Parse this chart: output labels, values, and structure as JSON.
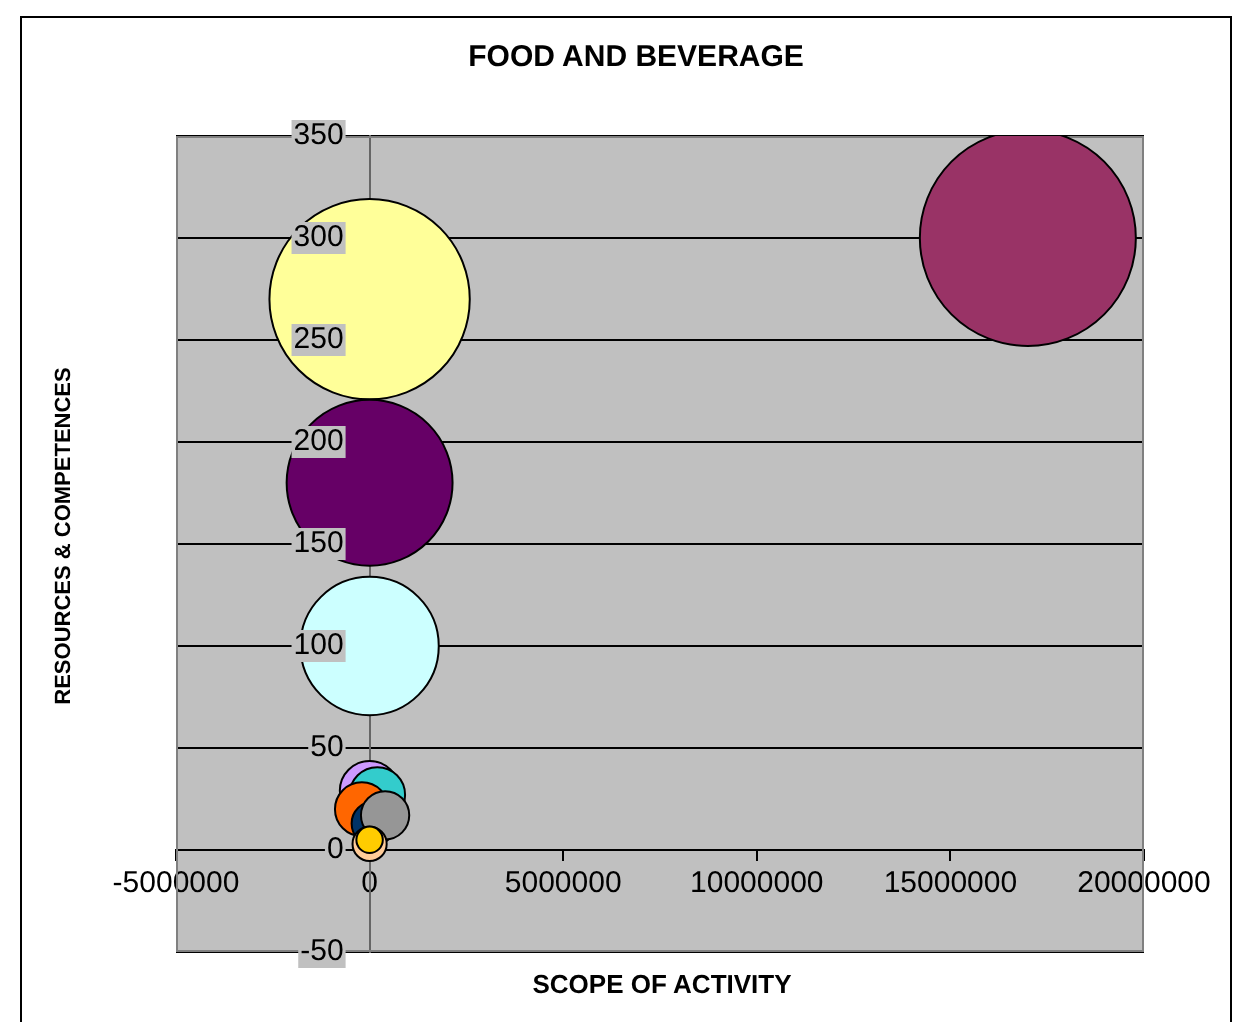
{
  "chart_data": {
    "type": "bubble",
    "title": "FOOD AND BEVERAGE",
    "xlabel": "SCOPE OF ACTIVITY",
    "ylabel": "RESOURCES & COMPETENCES",
    "x": [
      17000000,
      0,
      0,
      0,
      0,
      200000,
      -200000,
      100000,
      400000,
      0,
      0
    ],
    "values": [
      300,
      270,
      180,
      100,
      29,
      27,
      20,
      13,
      17,
      3,
      5
    ],
    "sizes": [
      1,
      0.86,
      0.59,
      0.41,
      0.076,
      0.066,
      0.062,
      0.041,
      0.05,
      0.025,
      0.015
    ],
    "colors": [
      "#993366",
      "#ffff99",
      "#660066",
      "#ccffff",
      "#cc99ff",
      "#33cccc",
      "#ff6600",
      "#003366",
      "#969696",
      "#ffcc99",
      "#ffcc00"
    ],
    "xlim": [
      -5000000,
      20000000
    ],
    "xticks": [
      -5000000,
      0,
      5000000,
      10000000,
      15000000,
      20000000
    ],
    "ylim": [
      -50,
      350
    ],
    "yticks": [
      -50,
      0,
      50,
      100,
      150,
      200,
      250,
      300,
      350
    ],
    "grid": "y"
  }
}
